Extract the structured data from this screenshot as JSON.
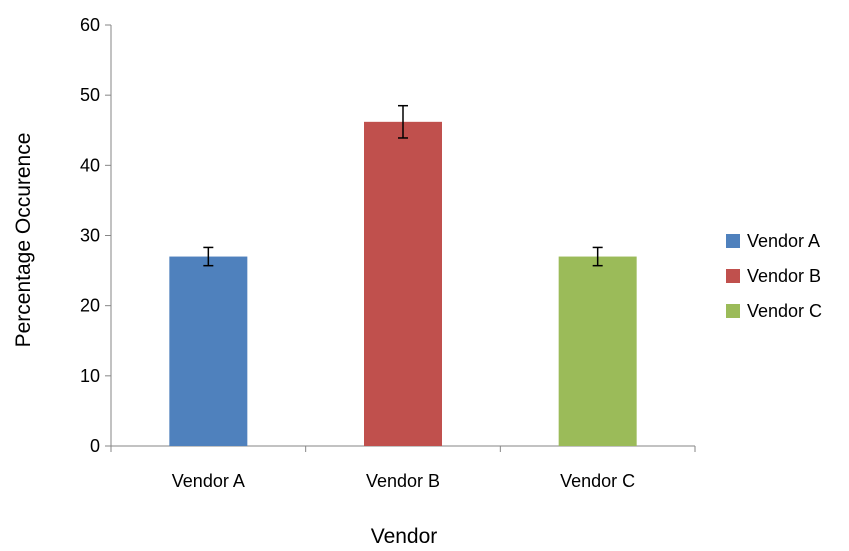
{
  "chart_data": {
    "type": "bar",
    "title": "",
    "xlabel": "Vendor",
    "ylabel": "Percentage Occurence",
    "categories": [
      "Vendor A",
      "Vendor B",
      "Vendor C"
    ],
    "values": [
      27,
      46.2,
      27
    ],
    "error": [
      1.3,
      2.3,
      1.3
    ],
    "colors": [
      "#4F81BD",
      "#C0504D",
      "#9BBB59"
    ],
    "ylim": [
      0,
      60
    ],
    "yticks": [
      "0",
      "10",
      "20",
      "30",
      "40",
      "50",
      "60"
    ],
    "grid": false,
    "legend": {
      "position": "right",
      "entries": [
        "Vendor A",
        "Vendor B",
        "Vendor C"
      ]
    }
  }
}
